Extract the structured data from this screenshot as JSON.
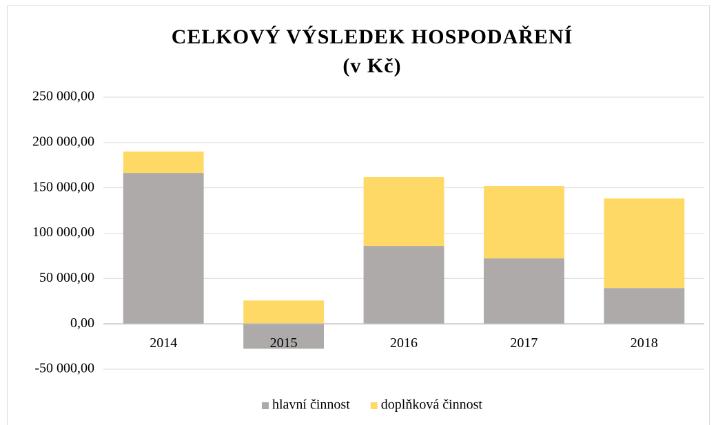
{
  "chart_data": {
    "type": "stacked_bar",
    "title": "CELKOVÝ VÝSLEDEK HOSPODAŘENÍ",
    "subtitle": "(v Kč)",
    "categories": [
      "2014",
      "2015",
      "2016",
      "2017",
      "2018"
    ],
    "series": [
      {
        "name": "hlavní činnost",
        "color": "#aeaaaa",
        "values": [
          166400,
          -27400,
          85900,
          72200,
          39500
        ]
      },
      {
        "name": "doplňková činnost",
        "color": "#ffd966",
        "values": [
          23600,
          25800,
          76000,
          79800,
          98800
        ]
      }
    ],
    "ylim": [
      -50000,
      250000
    ],
    "yticks": [
      {
        "value": -50000,
        "label": "-50 000,00"
      },
      {
        "value": 0,
        "label": "0,00"
      },
      {
        "value": 50000,
        "label": "50 000,00"
      },
      {
        "value": 100000,
        "label": "100 000,00"
      },
      {
        "value": 150000,
        "label": "150 000,00"
      },
      {
        "value": 200000,
        "label": "200 000,00"
      },
      {
        "value": 250000,
        "label": "250 000,00"
      }
    ],
    "grid": true,
    "legend": "bottom"
  }
}
